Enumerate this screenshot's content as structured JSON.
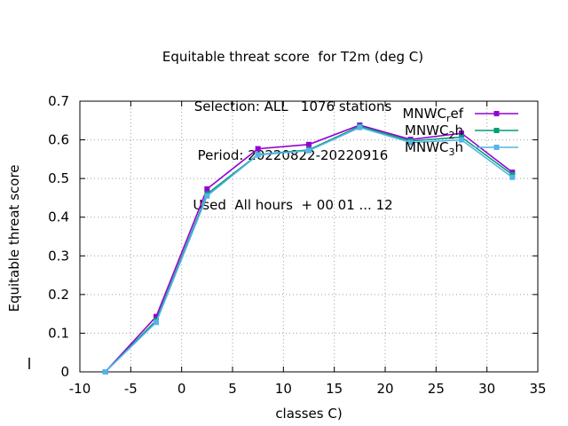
{
  "chart_data": {
    "type": "line",
    "title_lines": [
      "Equitable threat score  for T2m (deg C)",
      "Selection: ALL   1076 stations",
      "Period: 20220822-20220916",
      "Used  All hours  + 00 01 ... 12"
    ],
    "xlabel": "classes C)",
    "ylabel": "Equitable threat score",
    "xlim": [
      -10,
      35
    ],
    "ylim": [
      0,
      0.7
    ],
    "xticks": [
      -10,
      -5,
      0,
      5,
      10,
      15,
      20,
      25,
      30,
      35
    ],
    "yticks": [
      0,
      0.1,
      0.2,
      0.3,
      0.4,
      0.5,
      0.6,
      0.7
    ],
    "grid": true,
    "legend_position": "top-right",
    "x": [
      -7.5,
      -2.5,
      2.5,
      7.5,
      12.5,
      17.5,
      22.5,
      27.5,
      32.5
    ],
    "series": [
      {
        "name": "MNWC",
        "name_sub": "r",
        "name_rest": "ef",
        "color": "#9400d3",
        "values": [
          0.0,
          0.143,
          0.473,
          0.577,
          0.588,
          0.638,
          0.601,
          0.617,
          0.516
        ]
      },
      {
        "name": "MNWC",
        "name_sub": "2",
        "name_rest": "h",
        "color": "#009e73",
        "values": [
          0.0,
          0.133,
          0.46,
          0.562,
          0.574,
          0.635,
          0.597,
          0.607,
          0.51
        ]
      },
      {
        "name": "MNWC",
        "name_sub": "3",
        "name_rest": "h",
        "color": "#56b4e9",
        "values": [
          0.0,
          0.128,
          0.455,
          0.561,
          0.572,
          0.632,
          0.593,
          0.6,
          0.503
        ]
      }
    ]
  }
}
